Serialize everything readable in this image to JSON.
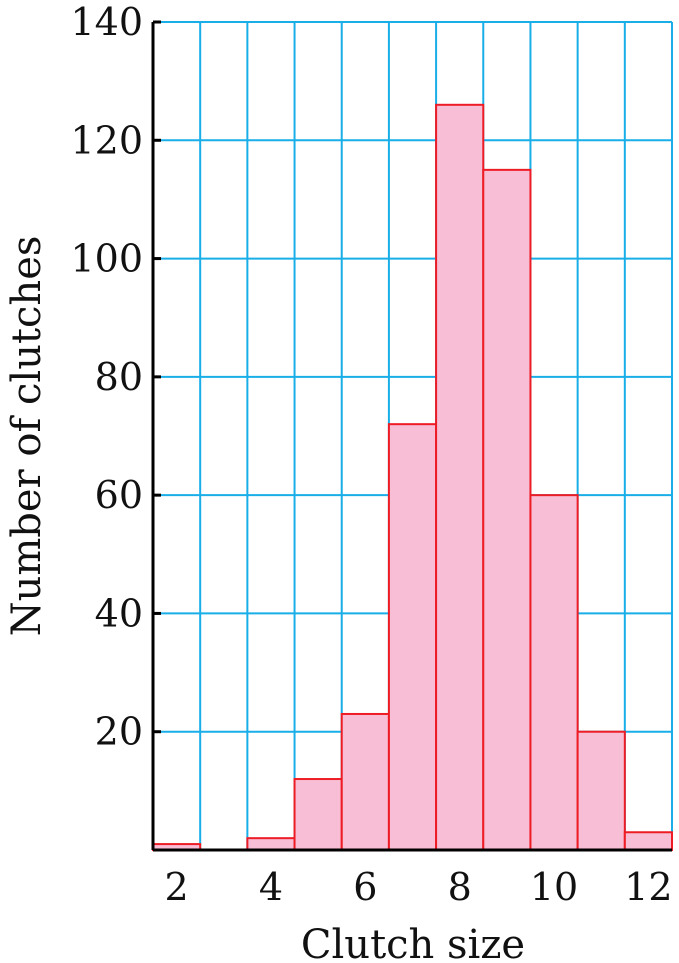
{
  "chart_data": {
    "type": "bar",
    "title": "",
    "xlabel": "Clutch size",
    "ylabel": "Number of clutches",
    "categories": [
      2,
      3,
      4,
      5,
      6,
      7,
      8,
      9,
      10,
      11,
      12
    ],
    "values": [
      1,
      0,
      2,
      12,
      23,
      72,
      126,
      115,
      60,
      20,
      3
    ],
    "xlim": [
      1.5,
      12.5
    ],
    "ylim": [
      0,
      140
    ],
    "x_ticks": [
      "2",
      "4",
      "6",
      "8",
      "10",
      "12"
    ],
    "y_ticks": [
      "20",
      "40",
      "60",
      "80",
      "100",
      "120",
      "140"
    ],
    "grid": true,
    "colors": {
      "bar_fill": "#f8bed6",
      "bar_stroke": "#ee1c25",
      "grid": "#19aee8",
      "axis": "#000000"
    }
  }
}
